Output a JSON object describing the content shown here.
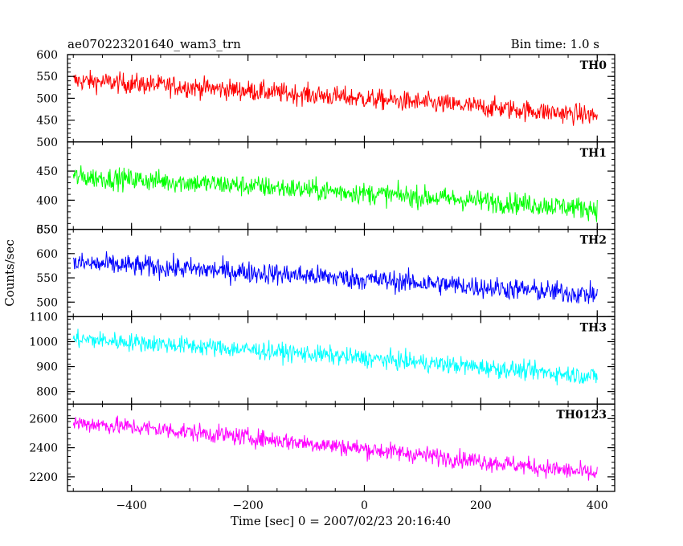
{
  "header": {
    "left": "ae070223201640_wam3_trn",
    "right": "Bin time: 1.0 s"
  },
  "chart_data": {
    "type": "line",
    "title": "ae070223201640_wam3_trn",
    "subtitle": "Bin time: 1.0 s",
    "xlabel": "Time [sec] 0 = 2007/02/23 20:16:40",
    "ylabel": "Counts/sec",
    "xlim": [
      -510,
      430
    ],
    "x_ticks": [
      -400,
      -200,
      0,
      200,
      400
    ],
    "x_tick_labels": [
      "−400",
      "−200",
      "0",
      "200",
      "400"
    ],
    "x_range_data": [
      -500,
      400
    ],
    "bin_time_s": 1.0,
    "grid": false,
    "legend": "none",
    "panels": [
      {
        "name": "TH0",
        "color": "#ff0000",
        "ylim": [
          400,
          600
        ],
        "y_ticks": [
          450,
          500,
          550,
          600
        ],
        "y_tick_labels": [
          "450",
          "500",
          "550",
          "600"
        ],
        "trend_start": 540,
        "trend_end": 460,
        "noise_amplitude": 42
      },
      {
        "name": "TH1",
        "color": "#00ff00",
        "ylim": [
          350,
          500
        ],
        "y_ticks": [
          350,
          400,
          450,
          500
        ],
        "y_tick_labels": [
          "350",
          "400",
          "450",
          "500"
        ],
        "trend_start": 440,
        "trend_end": 385,
        "noise_amplitude": 33
      },
      {
        "name": "TH2",
        "color": "#0000ff",
        "ylim": [
          470,
          650
        ],
        "y_ticks": [
          500,
          550,
          600,
          650
        ],
        "y_tick_labels": [
          "500",
          "550",
          "600",
          "650"
        ],
        "trend_start": 580,
        "trend_end": 515,
        "noise_amplitude": 40
      },
      {
        "name": "TH3",
        "color": "#00ffff",
        "ylim": [
          750,
          1100
        ],
        "y_ticks": [
          800,
          900,
          1000,
          1100
        ],
        "y_tick_labels": [
          "800",
          "900",
          "1000",
          "1100"
        ],
        "trend_start": 1010,
        "trend_end": 860,
        "noise_amplitude": 65
      },
      {
        "name": "TH0123",
        "color": "#ff00ff",
        "ylim": [
          2100,
          2700
        ],
        "y_ticks": [
          2200,
          2400,
          2600
        ],
        "y_tick_labels": [
          "2200",
          "2400",
          "2600"
        ],
        "trend_start": 2570,
        "trend_end": 2220,
        "noise_amplitude": 110
      }
    ]
  }
}
